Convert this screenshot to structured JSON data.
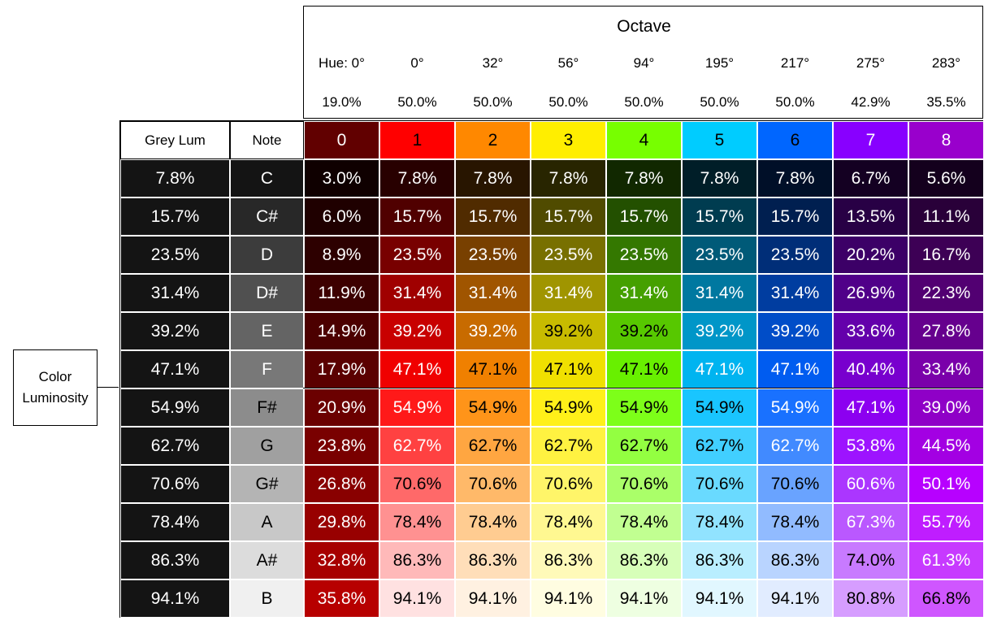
{
  "header": {
    "title": "Octave",
    "hue_labels": [
      "Hue: 0°",
      "0°",
      "32°",
      "56°",
      "94°",
      "195°",
      "217°",
      "275°",
      "283°"
    ],
    "base_luminosities": [
      "19.0%",
      "50.0%",
      "50.0%",
      "50.0%",
      "50.0%",
      "50.0%",
      "50.0%",
      "42.9%",
      "35.5%"
    ]
  },
  "side_label": {
    "line1": "Color",
    "line2": "Luminosity"
  },
  "table": {
    "col_grey_header": "Grey Lum",
    "col_note_header": "Note",
    "octaves": [
      "0",
      "1",
      "2",
      "3",
      "4",
      "5",
      "6",
      "7",
      "8"
    ],
    "octave_hues": [
      0,
      0,
      32,
      56,
      94,
      195,
      217,
      275,
      283
    ],
    "octave_colors": [
      "#610000",
      "#ff0000",
      "#ff8800",
      "#ffee00",
      "#77ff00",
      "#00ccff",
      "#0066ff",
      "#8800ff",
      "#9900cc"
    ],
    "rows": [
      {
        "grey": "7.8%",
        "note": "C",
        "values": [
          "3.0%",
          "7.8%",
          "7.8%",
          "7.8%",
          "7.8%",
          "7.8%",
          "7.8%",
          "6.7%",
          "5.6%"
        ]
      },
      {
        "grey": "15.7%",
        "note": "C#",
        "values": [
          "6.0%",
          "15.7%",
          "15.7%",
          "15.7%",
          "15.7%",
          "15.7%",
          "15.7%",
          "13.5%",
          "11.1%"
        ]
      },
      {
        "grey": "23.5%",
        "note": "D",
        "values": [
          "8.9%",
          "23.5%",
          "23.5%",
          "23.5%",
          "23.5%",
          "23.5%",
          "23.5%",
          "20.2%",
          "16.7%"
        ]
      },
      {
        "grey": "31.4%",
        "note": "D#",
        "values": [
          "11.9%",
          "31.4%",
          "31.4%",
          "31.4%",
          "31.4%",
          "31.4%",
          "31.4%",
          "26.9%",
          "22.3%"
        ]
      },
      {
        "grey": "39.2%",
        "note": "E",
        "values": [
          "14.9%",
          "39.2%",
          "39.2%",
          "39.2%",
          "39.2%",
          "39.2%",
          "39.2%",
          "33.6%",
          "27.8%"
        ]
      },
      {
        "grey": "47.1%",
        "note": "F",
        "values": [
          "17.9%",
          "47.1%",
          "47.1%",
          "47.1%",
          "47.1%",
          "47.1%",
          "47.1%",
          "40.4%",
          "33.4%"
        ]
      },
      {
        "grey": "54.9%",
        "note": "F#",
        "values": [
          "20.9%",
          "54.9%",
          "54.9%",
          "54.9%",
          "54.9%",
          "54.9%",
          "54.9%",
          "47.1%",
          "39.0%"
        ]
      },
      {
        "grey": "62.7%",
        "note": "G",
        "values": [
          "23.8%",
          "62.7%",
          "62.7%",
          "62.7%",
          "62.7%",
          "62.7%",
          "62.7%",
          "53.8%",
          "44.5%"
        ]
      },
      {
        "grey": "70.6%",
        "note": "G#",
        "values": [
          "26.8%",
          "70.6%",
          "70.6%",
          "70.6%",
          "70.6%",
          "70.6%",
          "70.6%",
          "60.6%",
          "50.1%"
        ]
      },
      {
        "grey": "78.4%",
        "note": "A",
        "values": [
          "29.8%",
          "78.4%",
          "78.4%",
          "78.4%",
          "78.4%",
          "78.4%",
          "78.4%",
          "67.3%",
          "55.7%"
        ]
      },
      {
        "grey": "86.3%",
        "note": "A#",
        "values": [
          "32.8%",
          "86.3%",
          "86.3%",
          "86.3%",
          "86.3%",
          "86.3%",
          "86.3%",
          "74.0%",
          "61.3%"
        ]
      },
      {
        "grey": "94.1%",
        "note": "B",
        "values": [
          "35.8%",
          "94.1%",
          "94.1%",
          "94.1%",
          "94.1%",
          "94.1%",
          "94.1%",
          "80.8%",
          "66.8%"
        ]
      }
    ]
  }
}
